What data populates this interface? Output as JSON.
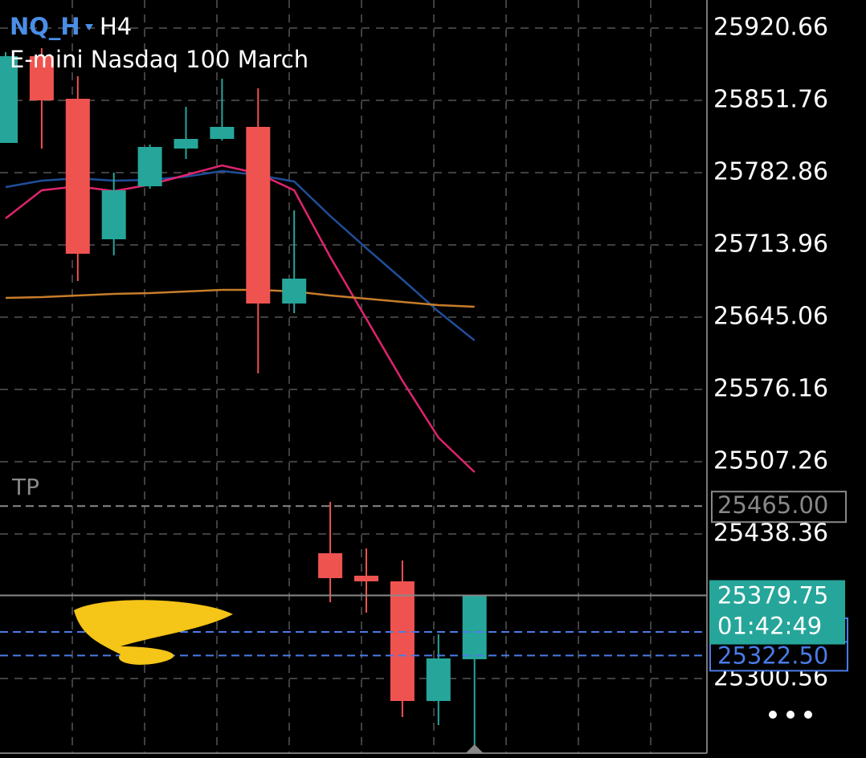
{
  "chart_data": {
    "type": "candlestick",
    "symbol": "NQ_H",
    "timeframe": "H4",
    "title": "E-mini Nasdaq 100 March",
    "ylim": [
      25224.77,
      25947.45
    ],
    "yticks": [
      25920.66,
      25851.76,
      25782.86,
      25713.96,
      25645.06,
      25576.16,
      25507.26,
      25438.36,
      25300.56
    ],
    "grid": true,
    "up_color": "#26a69a",
    "down_color": "#ef5350",
    "candles": {
      "open": [
        25811.19,
        25893.87,
        25853.29,
        25719.32,
        25769.85,
        25805.83,
        25815.01,
        25826.5,
        25658.08,
        25420.0,
        25398.56,
        25393.2,
        25279.13,
        25318.94
      ],
      "high": [
        25897.69,
        25901.52,
        25874.73,
        25782.86,
        25809.66,
        25845.64,
        25872.43,
        25863.24,
        25746.88,
        25469.0,
        25424.59,
        25413.1,
        25342.67,
        25379.75
      ],
      "low": [
        25811.19,
        25805.83,
        25679.51,
        25704.01,
        25767.55,
        25795.88,
        25813.48,
        25591.51,
        25648.93,
        25373.29,
        25363.34,
        25263.82,
        25256.16,
        25235.49
      ],
      "close": [
        25893.87,
        25851.76,
        25705.54,
        25766.02,
        25807.36,
        25815.01,
        25826.5,
        25658.08,
        25681.81,
        25396.26,
        25393.2,
        25279.13,
        25319.7,
        25379.75
      ]
    },
    "series": [
      {
        "color": "#1f4e99",
        "values": [
          25769.08,
          25775.2,
          25777.5,
          25775.2,
          25775.97,
          25779.03,
          25784.39,
          25780.56,
          25774.43,
          25741.52,
          25710.89,
          25681.04,
          25650.41,
          25622.85
        ]
      },
      {
        "color": "#e0246e",
        "values": [
          25739.22,
          25766.01,
          25769.84,
          25765.25,
          25771.37,
          25780.56,
          25789.75,
          25782.09,
          25766.01,
          25702.47,
          25643.52,
          25584.58,
          25530.22,
          25497.3
        ]
      },
      {
        "color": "#c87d2a",
        "values": [
          25663.43,
          25664.19,
          25665.73,
          25667.26,
          25668.02,
          25669.55,
          25671.08,
          25671.08,
          25669.55,
          25665.73,
          25662.66,
          25659.6,
          25656.54,
          25655.01
        ]
      }
    ],
    "tp": {
      "label": "TP",
      "price": {
        "value": 25465,
        "label": "25465.00"
      }
    },
    "orders": [
      {
        "value": 25344.96
      },
      {
        "value": 25322.5,
        "label": "25322.50"
      }
    ],
    "last_price": 25379.75,
    "countdown": "01:42:49"
  }
}
